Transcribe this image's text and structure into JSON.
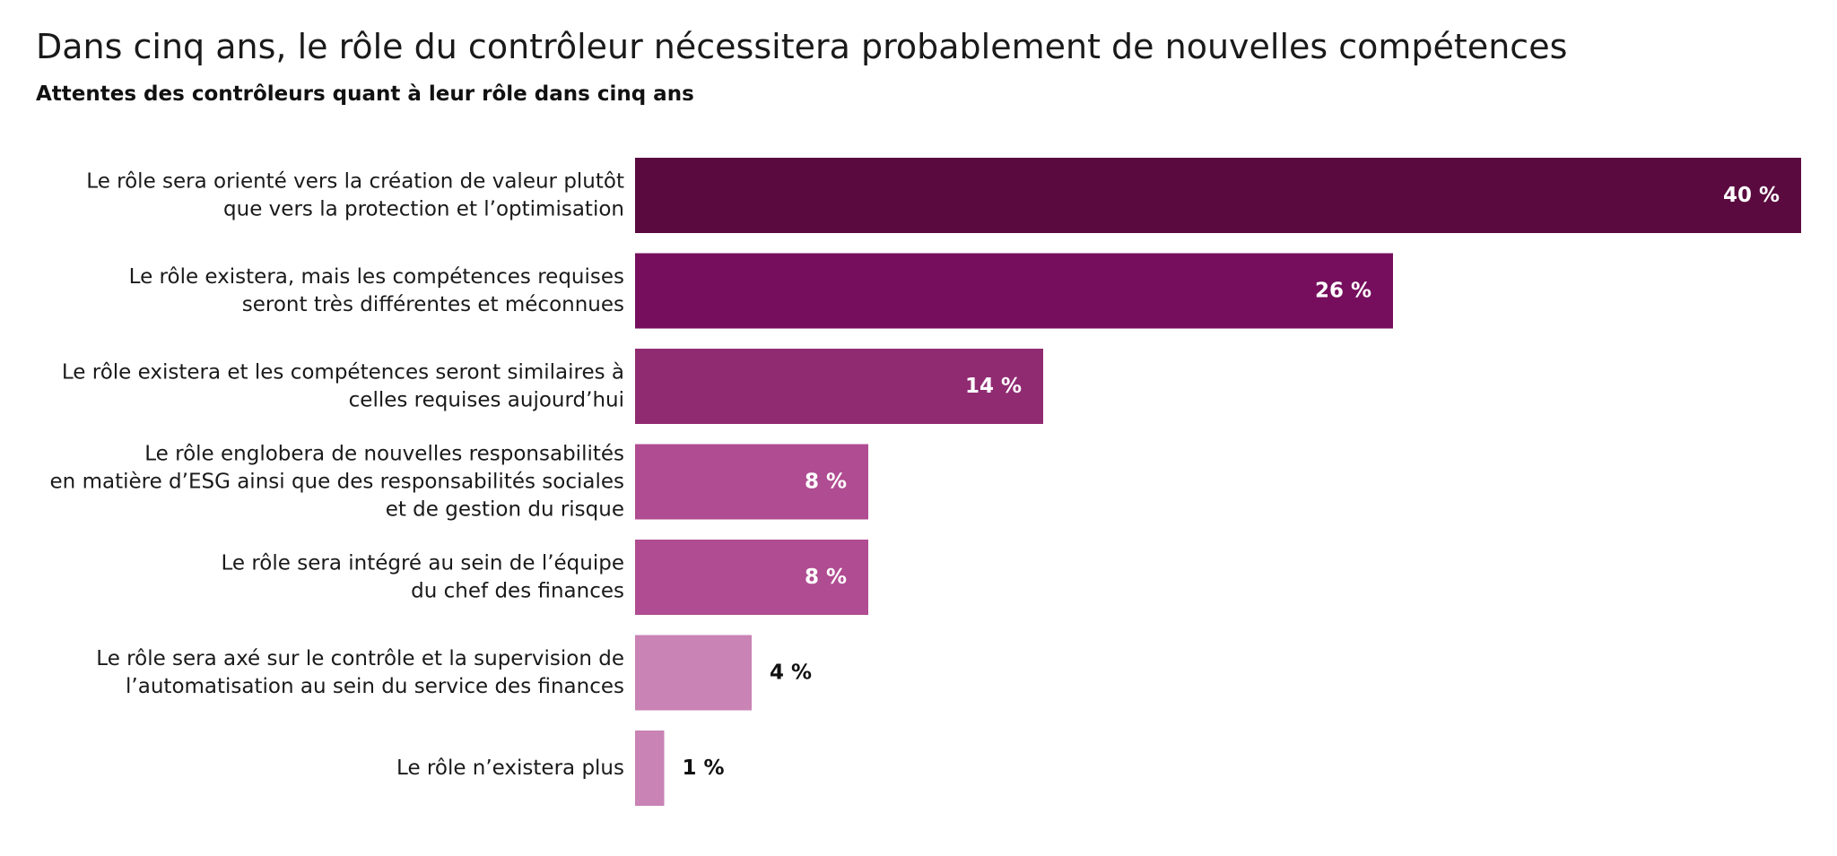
{
  "chart_data": {
    "type": "bar",
    "orientation": "horizontal",
    "title": "Dans cinq ans, le rôle du contrôleur nécessitera probablement de nouvelles compétences",
    "subtitle": "Attentes des contrôleurs quant à leur rôle dans cinq ans",
    "xlim": [
      0,
      40
    ],
    "grid": false,
    "legend": "none",
    "categories": [
      [
        "Le rôle sera orienté vers la création de valeur plutôt",
        "que vers la protection et l’optimisation"
      ],
      [
        "Le rôle existera, mais les compétences requises",
        "seront très différentes et méconnues"
      ],
      [
        "Le rôle existera et les compétences seront similaires à",
        "celles requises aujourd’hui"
      ],
      [
        "Le rôle englobera de nouvelles responsabilités",
        "en matière d’ESG ainsi que des responsabilités sociales",
        "et de gestion du risque"
      ],
      [
        "Le rôle sera intégré au sein de l’équipe",
        "du chef des finances"
      ],
      [
        "Le rôle sera axé sur le contrôle et la supervision de",
        "l’automatisation au sein du service des finances"
      ],
      [
        "Le rôle n’existera plus"
      ]
    ],
    "values": [
      40,
      26,
      14,
      8,
      8,
      4,
      1
    ],
    "value_labels": [
      "40 %",
      "26 %",
      "14 %",
      "8 %",
      "8 %",
      "4 %",
      "1 %"
    ],
    "colors": [
      "#5a0a3f",
      "#760e5d",
      "#902b72",
      "#b04c91",
      "#b04c91",
      "#c983b4",
      "#c983b4"
    ],
    "label_inside": [
      true,
      true,
      true,
      true,
      true,
      false,
      false
    ],
    "inside_label_color": "#ffffff",
    "outside_label_color": "#111111"
  }
}
